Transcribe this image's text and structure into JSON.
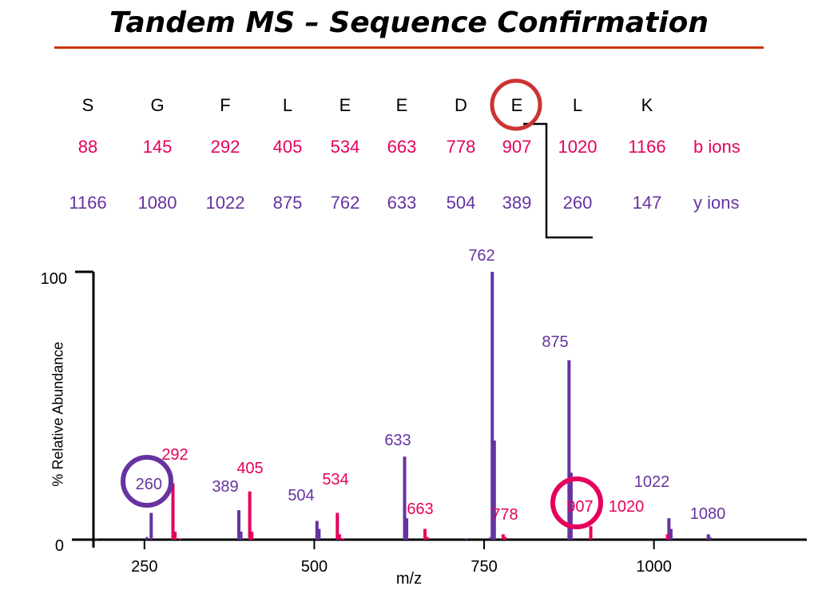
{
  "title": "Tandem MS – Sequence Confirmation",
  "colors": {
    "b_ion": "#e6005c",
    "y_ion": "#6633a0",
    "title_rule": "#cc3300",
    "highlight_sequence": "#cc3333"
  },
  "sequence": [
    "S",
    "G",
    "F",
    "L",
    "E",
    "E",
    "D",
    "E",
    "L",
    "K"
  ],
  "b_ions": {
    "values": [
      "88",
      "145",
      "292",
      "405",
      "534",
      "663",
      "778",
      "907",
      "1020",
      "1166"
    ],
    "label": "b ions"
  },
  "y_ions": {
    "values": [
      "1166",
      "1080",
      "1022",
      "875",
      "762",
      "633",
      "504",
      "389",
      "260",
      "147"
    ],
    "label": "y ions"
  },
  "chart_data": {
    "type": "bar",
    "title": "",
    "xlabel": "m/z",
    "ylabel": "% Relative Abundance",
    "xlim": [
      175,
      1225
    ],
    "ylim": [
      0,
      100
    ],
    "xticks": [
      "250",
      "500",
      "750",
      "1000"
    ],
    "yticks": [
      "0",
      "100"
    ],
    "grid": false,
    "series": [
      {
        "name": "y ions",
        "color": "#6633a0",
        "peaks": [
          {
            "mz": 260,
            "value": 10,
            "label": "260"
          },
          {
            "mz": 389,
            "value": 11,
            "label": "389"
          },
          {
            "mz": 504,
            "value": 7,
            "label": "504"
          },
          {
            "mz": 633,
            "value": 31,
            "label": "633"
          },
          {
            "mz": 762,
            "value": 100,
            "label": "762"
          },
          {
            "mz": 875,
            "value": 67,
            "label": "875"
          },
          {
            "mz": 1022,
            "value": 8,
            "label": "1022"
          },
          {
            "mz": 1080,
            "value": 2,
            "label": "1080"
          }
        ],
        "minor": [
          {
            "mz": 178,
            "value": 0.5
          },
          {
            "mz": 253,
            "value": 1
          },
          {
            "mz": 392,
            "value": 3
          },
          {
            "mz": 507,
            "value": 4
          },
          {
            "mz": 636,
            "value": 8
          },
          {
            "mz": 765,
            "value": 37
          },
          {
            "mz": 759,
            "value": 1
          },
          {
            "mz": 878,
            "value": 25
          },
          {
            "mz": 1025,
            "value": 4
          },
          {
            "mz": 1082,
            "value": 1
          },
          {
            "mz": 723,
            "value": 0.5
          }
        ]
      },
      {
        "name": "b ions",
        "color": "#e6005c",
        "peaks": [
          {
            "mz": 292,
            "value": 21,
            "label": "292"
          },
          {
            "mz": 405,
            "value": 18,
            "label": "405"
          },
          {
            "mz": 534,
            "value": 10,
            "label": "534"
          },
          {
            "mz": 663,
            "value": 4,
            "label": "663"
          },
          {
            "mz": 778,
            "value": 2,
            "label": "778"
          },
          {
            "mz": 907,
            "value": 5,
            "label": "907"
          },
          {
            "mz": 1020,
            "value": 2,
            "label": "1020"
          }
        ],
        "minor": [
          {
            "mz": 295,
            "value": 3
          },
          {
            "mz": 408,
            "value": 3
          },
          {
            "mz": 537,
            "value": 2
          },
          {
            "mz": 666,
            "value": 1
          },
          {
            "mz": 781,
            "value": 1
          },
          {
            "mz": 302,
            "value": 0.5
          },
          {
            "mz": 542,
            "value": 0.5
          }
        ]
      }
    ],
    "highlighted": [
      "260",
      "907"
    ]
  }
}
